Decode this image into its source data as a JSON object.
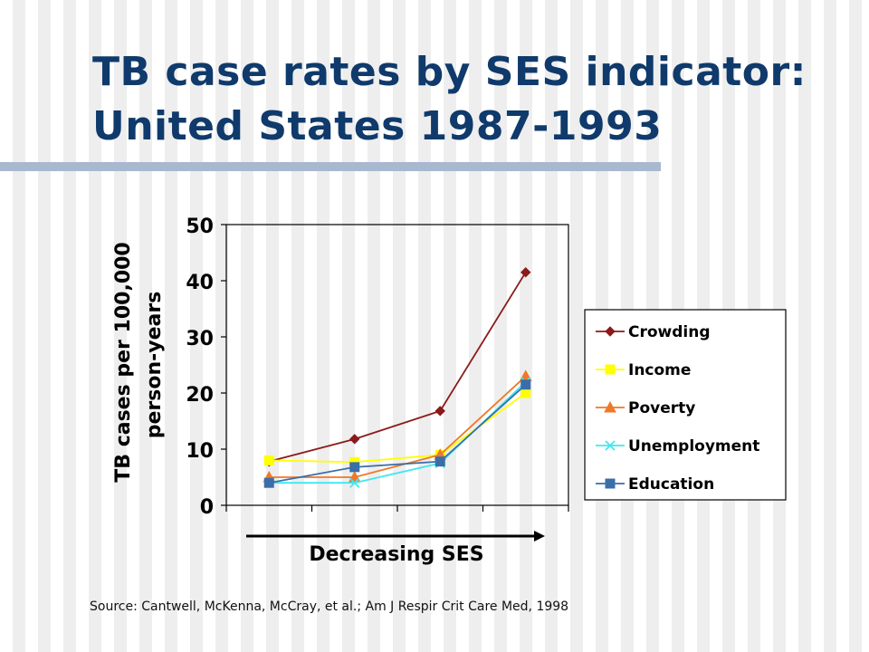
{
  "slide": {
    "title_line1": "TB case rates by SES indicator:",
    "title_line2": "United States 1987-1993",
    "source": "Source: Cantwell, McKenna, McCray, et al.; Am J Respir Crit Care Med, 1998",
    "accent_color": "#0f3a6b",
    "rule_color": "#a8b8d0"
  },
  "chart_data": {
    "type": "line",
    "title": "",
    "xlabel": "Decreasing SES",
    "ylabel_line1": "TB cases per 100,000",
    "ylabel_line2": "person-years",
    "x": [
      1,
      2,
      3,
      4
    ],
    "ylim": [
      0,
      50
    ],
    "yticks": [
      0,
      10,
      20,
      30,
      40,
      50
    ],
    "grid": false,
    "legend_position": "right",
    "series": [
      {
        "name": "Crowding",
        "values": [
          7.8,
          11.8,
          16.8,
          41.5
        ],
        "color": "#8b1a1a",
        "marker": "diamond"
      },
      {
        "name": "Income",
        "values": [
          8.0,
          7.7,
          9.0,
          20.0
        ],
        "color": "#ffff00",
        "marker": "square"
      },
      {
        "name": "Poverty",
        "values": [
          5.0,
          5.0,
          9.0,
          23.0
        ],
        "color": "#f07828",
        "marker": "triangle"
      },
      {
        "name": "Unemployment",
        "values": [
          4.0,
          4.0,
          7.5,
          22.0
        ],
        "color": "#3ee8f0",
        "marker": "x"
      },
      {
        "name": "Education",
        "values": [
          4.0,
          6.8,
          7.8,
          21.5
        ],
        "color": "#3a6ea8",
        "marker": "square"
      }
    ]
  }
}
